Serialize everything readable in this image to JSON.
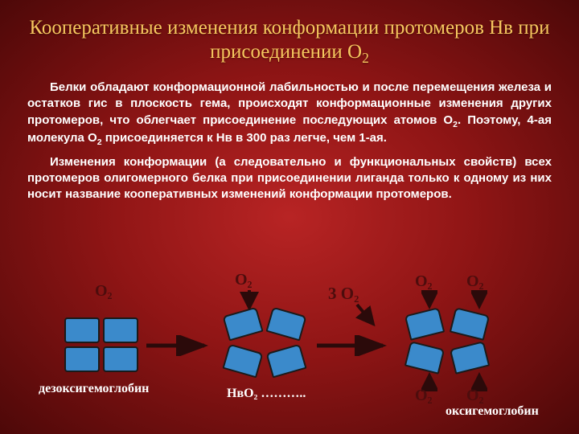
{
  "title_html": "Кооперативные изменения конформации протомеров Нв при присоединении О<sub>2</sub>",
  "para1_html": "Белки обладают конформационной лабильностью и после перемещения железа и остатков гис в плоскость гема, происходят конформационные изменения других протомеров, что облегчает присоединение последующих атомов О<sub>2</sub>. Поэтому, 4-ая молекула О<sub>2</sub> присоединяется к Нв в 300 раз легче, чем 1-ая.",
  "para2_html": "Изменения конформации (а следовательно и функциональных свойств) всех протомеров олигомерного белка при присоединении лиганда только к одному из них носит название кооперативных изменений конформации протомеров.",
  "labels": {
    "deoxy": "дезоксигемоглобин",
    "hbo2": "НвО₂ ………..",
    "oxy": "оксигемоглобин",
    "o2_1": "О₂",
    "o2_2": "О₂",
    "three_o2": "3 О₂",
    "o2_tr": "О₂",
    "o2_tl": "О₂",
    "o2_br": "О₂",
    "o2_bl": "О₂"
  },
  "colors": {
    "accent": "#f7c85f",
    "body_text": "#ffffff",
    "protomer_fill": "#3b8acb",
    "protomer_stroke": "#1a1a1a",
    "dark_text": "#4d0d0d",
    "arrow_stroke": "#2b0a0a"
  },
  "layout": {
    "slide_w": 720,
    "slide_h": 540,
    "title_fontsize": 25,
    "para_fontsize": 15
  }
}
